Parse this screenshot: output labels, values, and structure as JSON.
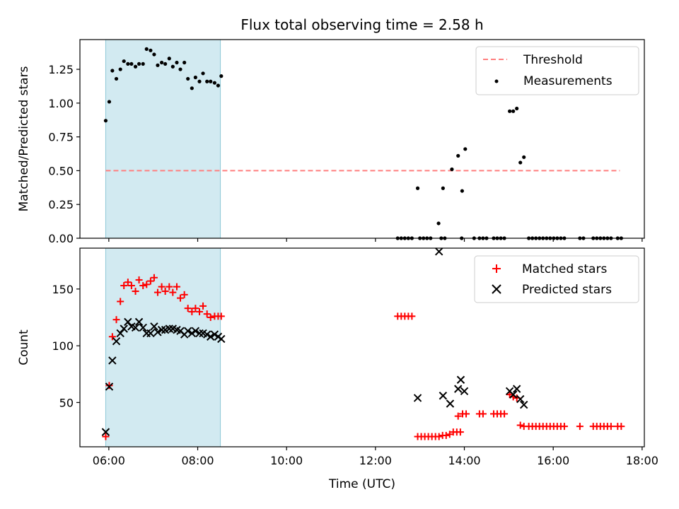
{
  "chart_data": {
    "title": "Flux total observing time = 2.58 h",
    "xlabel": "Time (UTC)",
    "x_tick_labels": [
      "06:00",
      "08:00",
      "10:00",
      "12:00",
      "14:00",
      "16:00",
      "18:00"
    ],
    "x_tick_hours": [
      6,
      8,
      10,
      12,
      14,
      16,
      18
    ],
    "xlim_hours": [
      5.35,
      18.05
    ],
    "shaded_interval_hours": [
      5.93,
      8.51
    ],
    "shade_color": "#add8e6",
    "panels": [
      {
        "type": "scatter",
        "ylabel": "Matched/Predicted stars",
        "ylim": [
          0,
          1.47
        ],
        "y_ticks": [
          0.0,
          0.25,
          0.5,
          0.75,
          1.0,
          1.25
        ],
        "y_tick_labels": [
          "0.00",
          "0.25",
          "0.50",
          "0.75",
          "1.00",
          "1.25"
        ],
        "threshold": {
          "name": "Threshold",
          "value": 0.5,
          "x_range_hours": [
            5.93,
            17.5
          ],
          "color": "#ff7f7f"
        },
        "legend": [
          "Threshold",
          "Measurements"
        ],
        "legend_position": "top-right",
        "series": [
          {
            "name": "Measurements",
            "marker": "dot",
            "color": "#000000",
            "points": [
              [
                5.93,
                0.87
              ],
              [
                6.01,
                1.01
              ],
              [
                6.08,
                1.24
              ],
              [
                6.17,
                1.18
              ],
              [
                6.26,
                1.25
              ],
              [
                6.34,
                1.31
              ],
              [
                6.43,
                1.29
              ],
              [
                6.51,
                1.29
              ],
              [
                6.6,
                1.27
              ],
              [
                6.68,
                1.29
              ],
              [
                6.77,
                1.29
              ],
              [
                6.85,
                1.4
              ],
              [
                6.94,
                1.39
              ],
              [
                7.02,
                1.36
              ],
              [
                7.1,
                1.28
              ],
              [
                7.19,
                1.3
              ],
              [
                7.27,
                1.29
              ],
              [
                7.36,
                1.33
              ],
              [
                7.44,
                1.27
              ],
              [
                7.53,
                1.3
              ],
              [
                7.61,
                1.25
              ],
              [
                7.7,
                1.3
              ],
              [
                7.78,
                1.18
              ],
              [
                7.87,
                1.11
              ],
              [
                7.95,
                1.19
              ],
              [
                8.04,
                1.16
              ],
              [
                8.12,
                1.22
              ],
              [
                8.21,
                1.16
              ],
              [
                8.29,
                1.16
              ],
              [
                8.38,
                1.15
              ],
              [
                8.46,
                1.13
              ],
              [
                8.53,
                1.2
              ],
              [
                12.5,
                0.0
              ],
              [
                12.58,
                0.0
              ],
              [
                12.66,
                0.0
              ],
              [
                12.74,
                0.0
              ],
              [
                12.82,
                0.0
              ],
              [
                12.95,
                0.37
              ],
              [
                13.0,
                0.0
              ],
              [
                13.08,
                0.0
              ],
              [
                13.16,
                0.0
              ],
              [
                13.24,
                0.0
              ],
              [
                13.42,
                0.11
              ],
              [
                13.52,
                0.37
              ],
              [
                13.48,
                0.0
              ],
              [
                13.56,
                0.0
              ],
              [
                13.72,
                0.51
              ],
              [
                13.86,
                0.61
              ],
              [
                13.95,
                0.35
              ],
              [
                14.02,
                0.66
              ],
              [
                13.94,
                0.0
              ],
              [
                14.22,
                0.0
              ],
              [
                14.34,
                0.0
              ],
              [
                14.42,
                0.0
              ],
              [
                14.5,
                0.0
              ],
              [
                14.66,
                0.0
              ],
              [
                14.74,
                0.0
              ],
              [
                14.82,
                0.0
              ],
              [
                14.9,
                0.0
              ],
              [
                15.02,
                0.94
              ],
              [
                15.1,
                0.94
              ],
              [
                15.18,
                0.96
              ],
              [
                15.26,
                0.56
              ],
              [
                15.34,
                0.6
              ],
              [
                15.45,
                0.0
              ],
              [
                15.53,
                0.0
              ],
              [
                15.61,
                0.0
              ],
              [
                15.69,
                0.0
              ],
              [
                15.77,
                0.0
              ],
              [
                15.85,
                0.0
              ],
              [
                15.93,
                0.0
              ],
              [
                16.01,
                0.0
              ],
              [
                16.09,
                0.0
              ],
              [
                16.17,
                0.0
              ],
              [
                16.25,
                0.0
              ],
              [
                16.6,
                0.0
              ],
              [
                16.68,
                0.0
              ],
              [
                16.9,
                0.0
              ],
              [
                16.98,
                0.0
              ],
              [
                17.06,
                0.0
              ],
              [
                17.14,
                0.0
              ],
              [
                17.22,
                0.0
              ],
              [
                17.3,
                0.0
              ],
              [
                17.45,
                0.0
              ],
              [
                17.53,
                0.0
              ]
            ]
          }
        ]
      },
      {
        "type": "scatter",
        "ylabel": "Count",
        "ylim": [
          11,
          186
        ],
        "y_ticks": [
          50,
          100,
          150
        ],
        "y_tick_labels": [
          "50",
          "100",
          "150"
        ],
        "legend": [
          "Matched stars",
          "Predicted stars"
        ],
        "legend_position": "top-right",
        "series": [
          {
            "name": "Matched stars",
            "marker": "plus",
            "color": "#ff0000",
            "points": [
              [
                5.93,
                20
              ],
              [
                6.01,
                65
              ],
              [
                6.08,
                108
              ],
              [
                6.17,
                123
              ],
              [
                6.26,
                139
              ],
              [
                6.34,
                153
              ],
              [
                6.43,
                156
              ],
              [
                6.51,
                153
              ],
              [
                6.6,
                148
              ],
              [
                6.68,
                158
              ],
              [
                6.77,
                153
              ],
              [
                6.85,
                154
              ],
              [
                6.94,
                157
              ],
              [
                7.02,
                160
              ],
              [
                7.1,
                147
              ],
              [
                7.19,
                152
              ],
              [
                7.27,
                148
              ],
              [
                7.36,
                152
              ],
              [
                7.44,
                147
              ],
              [
                7.53,
                152
              ],
              [
                7.61,
                142
              ],
              [
                7.7,
                145
              ],
              [
                7.78,
                133
              ],
              [
                7.87,
                130
              ],
              [
                7.95,
                133
              ],
              [
                8.04,
                130
              ],
              [
                8.12,
                135
              ],
              [
                8.21,
                128
              ],
              [
                8.29,
                125
              ],
              [
                8.38,
                126
              ],
              [
                8.46,
                126
              ],
              [
                8.53,
                126
              ],
              [
                12.5,
                126
              ],
              [
                12.58,
                126
              ],
              [
                12.66,
                126
              ],
              [
                12.74,
                126
              ],
              [
                12.82,
                126
              ],
              [
                12.95,
                20
              ],
              [
                13.03,
                20
              ],
              [
                13.11,
                20
              ],
              [
                13.19,
                20
              ],
              [
                13.27,
                20
              ],
              [
                13.35,
                20
              ],
              [
                13.43,
                20
              ],
              [
                13.51,
                21
              ],
              [
                13.59,
                21
              ],
              [
                13.67,
                22
              ],
              [
                13.75,
                24
              ],
              [
                13.83,
                24
              ],
              [
                13.91,
                24
              ],
              [
                13.86,
                38
              ],
              [
                13.96,
                40
              ],
              [
                14.04,
                40
              ],
              [
                14.34,
                40
              ],
              [
                14.42,
                40
              ],
              [
                14.66,
                40
              ],
              [
                14.74,
                40
              ],
              [
                14.82,
                40
              ],
              [
                14.9,
                40
              ],
              [
                15.02,
                57
              ],
              [
                15.1,
                55
              ],
              [
                15.18,
                54
              ],
              [
                15.26,
                30
              ],
              [
                15.34,
                29
              ],
              [
                15.45,
                29
              ],
              [
                15.53,
                29
              ],
              [
                15.61,
                29
              ],
              [
                15.69,
                29
              ],
              [
                15.77,
                29
              ],
              [
                15.85,
                29
              ],
              [
                15.93,
                29
              ],
              [
                16.01,
                29
              ],
              [
                16.09,
                29
              ],
              [
                16.17,
                29
              ],
              [
                16.25,
                29
              ],
              [
                16.6,
                29
              ],
              [
                16.9,
                29
              ],
              [
                16.98,
                29
              ],
              [
                17.06,
                29
              ],
              [
                17.14,
                29
              ],
              [
                17.22,
                29
              ],
              [
                17.3,
                29
              ],
              [
                17.45,
                29
              ],
              [
                17.53,
                29
              ]
            ]
          },
          {
            "name": "Predicted stars",
            "marker": "x",
            "color": "#000000",
            "points": [
              [
                5.93,
                24
              ],
              [
                6.01,
                64
              ],
              [
                6.08,
                87
              ],
              [
                6.17,
                104
              ],
              [
                6.26,
                111
              ],
              [
                6.34,
                115
              ],
              [
                6.43,
                121
              ],
              [
                6.51,
                117
              ],
              [
                6.6,
                116
              ],
              [
                6.68,
                121
              ],
              [
                6.77,
                116
              ],
              [
                6.85,
                111
              ],
              [
                6.94,
                111
              ],
              [
                7.02,
                117
              ],
              [
                7.1,
                112
              ],
              [
                7.19,
                114
              ],
              [
                7.27,
                114
              ],
              [
                7.36,
                115
              ],
              [
                7.44,
                115
              ],
              [
                7.53,
                114
              ],
              [
                7.61,
                113
              ],
              [
                7.7,
                110
              ],
              [
                7.78,
                113
              ],
              [
                7.87,
                111
              ],
              [
                7.95,
                113
              ],
              [
                8.04,
                111
              ],
              [
                8.12,
                111
              ],
              [
                8.21,
                110
              ],
              [
                8.29,
                108
              ],
              [
                8.38,
                110
              ],
              [
                8.46,
                108
              ],
              [
                8.53,
                106
              ],
              [
                12.95,
                54
              ],
              [
                13.43,
                183
              ],
              [
                13.52,
                56
              ],
              [
                13.68,
                49
              ],
              [
                13.86,
                62
              ],
              [
                13.92,
                70
              ],
              [
                14.0,
                60
              ],
              [
                15.02,
                60
              ],
              [
                15.1,
                57
              ],
              [
                15.18,
                62
              ],
              [
                15.26,
                53
              ],
              [
                15.34,
                48
              ]
            ]
          }
        ]
      }
    ]
  }
}
